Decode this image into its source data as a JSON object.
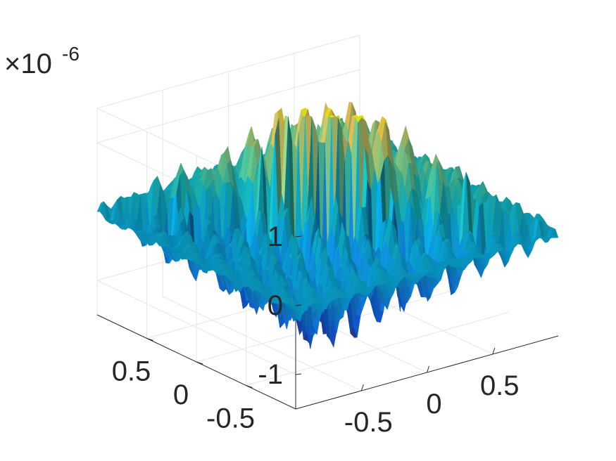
{
  "chart_data": {
    "type": "surface",
    "title": "",
    "xlabel": "",
    "ylabel": "",
    "zlabel": "",
    "x_range": [
      -1,
      1
    ],
    "y_range": [
      -1,
      1
    ],
    "z_range": [
      -1.5,
      1.5
    ],
    "z_exponent_label": "×10",
    "z_exponent_power": "-6",
    "x_ticks": [
      {
        "value": -0.5,
        "label": "-0.5"
      },
      {
        "value": 0,
        "label": "0"
      },
      {
        "value": 0.5,
        "label": "0.5"
      }
    ],
    "y_ticks": [
      {
        "value": -0.5,
        "label": "-0.5"
      },
      {
        "value": 0,
        "label": "0"
      },
      {
        "value": 0.5,
        "label": "0.5"
      }
    ],
    "z_ticks": [
      {
        "value": -1,
        "label": "-1"
      },
      {
        "value": 0,
        "label": "0"
      },
      {
        "value": 1,
        "label": "1"
      }
    ],
    "grid": true,
    "box": "back-planes",
    "colormap": "parula",
    "shading": "lit",
    "surface_description_values": {
      "pattern": "high-frequency oscillation, amplitude near 1.5e-6 at center, decaying toward edges",
      "positive_sector": "back (far) half",
      "negative_sector": "front (near) half"
    }
  }
}
